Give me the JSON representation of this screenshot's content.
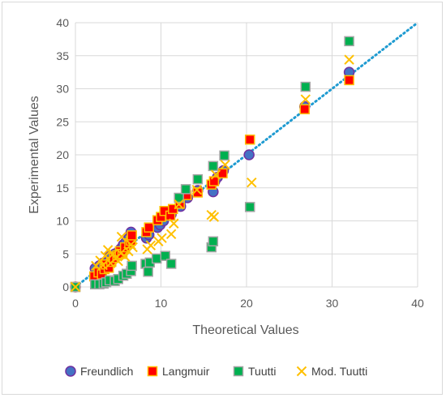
{
  "chart_data": {
    "type": "scatter",
    "xlabel": "Theoretical Values",
    "ylabel": "Experimental Values",
    "xlim": [
      0,
      40
    ],
    "ylim": [
      0,
      40
    ],
    "xticks": [
      0,
      10,
      20,
      30,
      40
    ],
    "yticks": [
      0,
      5,
      10,
      15,
      20,
      25,
      30,
      35,
      40
    ],
    "grid": true,
    "legend_position": "bottom",
    "reference_line": {
      "from": [
        0,
        0
      ],
      "to": [
        40,
        40
      ],
      "style": "dotted",
      "color": "#1f9bd1"
    },
    "series": [
      {
        "name": "Freundlich",
        "marker": "circle",
        "color": "#4472c4",
        "edge": "#7030a0",
        "points": [
          [
            0,
            0
          ],
          [
            2.3,
            2.8
          ],
          [
            2.8,
            3.2
          ],
          [
            3.2,
            3.6
          ],
          [
            3.5,
            3.4
          ],
          [
            3.8,
            4.0
          ],
          [
            4.0,
            4.6
          ],
          [
            4.3,
            4.1
          ],
          [
            4.6,
            5.0
          ],
          [
            5.0,
            5.3
          ],
          [
            5.3,
            5.8
          ],
          [
            5.6,
            6.4
          ],
          [
            5.9,
            6.8
          ],
          [
            6.2,
            7.3
          ],
          [
            6.5,
            8.3
          ],
          [
            8.3,
            7.4
          ],
          [
            8.6,
            7.9
          ],
          [
            9.6,
            9.0
          ],
          [
            9.9,
            9.4
          ],
          [
            10.3,
            10.0
          ],
          [
            11.2,
            11.0
          ],
          [
            12.3,
            12.2
          ],
          [
            13.1,
            13.5
          ],
          [
            14.3,
            14.6
          ],
          [
            16.1,
            14.4
          ],
          [
            16.3,
            16.0
          ],
          [
            16.6,
            16.6
          ],
          [
            17.3,
            17.6
          ],
          [
            20.3,
            20.0
          ],
          [
            26.8,
            27.3
          ],
          [
            32.0,
            32.5
          ]
        ]
      },
      {
        "name": "Langmuir",
        "marker": "square",
        "color": "#ff0000",
        "edge": "#ffc000",
        "points": [
          [
            0,
            0
          ],
          [
            2.2,
            1.6
          ],
          [
            2.7,
            2.2
          ],
          [
            3.1,
            1.9
          ],
          [
            3.4,
            2.7
          ],
          [
            3.6,
            3.4
          ],
          [
            3.9,
            2.9
          ],
          [
            4.2,
            3.8
          ],
          [
            4.5,
            4.4
          ],
          [
            4.9,
            4.8
          ],
          [
            5.2,
            5.4
          ],
          [
            5.5,
            5.0
          ],
          [
            5.8,
            6.0
          ],
          [
            6.3,
            6.6
          ],
          [
            6.5,
            7.0
          ],
          [
            6.6,
            7.8
          ],
          [
            8.3,
            8.3
          ],
          [
            8.6,
            9.0
          ],
          [
            9.6,
            10.1
          ],
          [
            10.0,
            10.6
          ],
          [
            10.4,
            11.5
          ],
          [
            11.1,
            10.8
          ],
          [
            11.4,
            11.8
          ],
          [
            12.2,
            12.6
          ],
          [
            13.0,
            13.9
          ],
          [
            14.3,
            14.3
          ],
          [
            15.9,
            15.5
          ],
          [
            16.2,
            16.0
          ],
          [
            17.2,
            17.2
          ],
          [
            20.4,
            22.3
          ],
          [
            26.8,
            26.9
          ],
          [
            32.0,
            31.3
          ]
        ]
      },
      {
        "name": "Tuutti",
        "marker": "square",
        "color": "#00b050",
        "edge": "#a5a5a5",
        "points": [
          [
            0,
            0
          ],
          [
            2.3,
            0.4
          ],
          [
            2.8,
            0.4
          ],
          [
            3.3,
            0.5
          ],
          [
            3.6,
            0.7
          ],
          [
            4.0,
            1.0
          ],
          [
            4.6,
            0.9
          ],
          [
            5.0,
            1.2
          ],
          [
            5.6,
            1.7
          ],
          [
            6.0,
            2.0
          ],
          [
            6.5,
            2.4
          ],
          [
            6.6,
            3.2
          ],
          [
            8.2,
            3.5
          ],
          [
            8.5,
            2.3
          ],
          [
            8.7,
            3.7
          ],
          [
            9.5,
            4.3
          ],
          [
            10.5,
            4.7
          ],
          [
            11.2,
            3.5
          ],
          [
            12.1,
            13.5
          ],
          [
            12.9,
            14.8
          ],
          [
            14.3,
            16.3
          ],
          [
            15.9,
            6.0
          ],
          [
            16.1,
            6.9
          ],
          [
            16.1,
            18.3
          ],
          [
            17.4,
            19.9
          ],
          [
            20.4,
            12.1
          ],
          [
            26.9,
            30.3
          ],
          [
            32.0,
            37.2
          ]
        ]
      },
      {
        "name": "Mod. Tuutti",
        "marker": "x",
        "color": "#ffc000",
        "points": [
          [
            0,
            0
          ],
          [
            2.4,
            3.2
          ],
          [
            2.9,
            4.0
          ],
          [
            3.2,
            3.3
          ],
          [
            3.5,
            4.7
          ],
          [
            3.8,
            5.6
          ],
          [
            4.1,
            3.6
          ],
          [
            4.4,
            5.0
          ],
          [
            4.7,
            4.3
          ],
          [
            5.0,
            3.9
          ],
          [
            5.3,
            5.1
          ],
          [
            5.4,
            7.6
          ],
          [
            5.8,
            4.6
          ],
          [
            6.2,
            5.4
          ],
          [
            6.5,
            6.4
          ],
          [
            6.7,
            6.0
          ],
          [
            8.4,
            5.7
          ],
          [
            8.8,
            6.3
          ],
          [
            9.7,
            6.9
          ],
          [
            10.1,
            7.4
          ],
          [
            11.2,
            8.0
          ],
          [
            11.5,
            9.6
          ],
          [
            12.1,
            12.5
          ],
          [
            14.2,
            14.7
          ],
          [
            15.9,
            10.9
          ],
          [
            16.2,
            10.6
          ],
          [
            16.4,
            17.0
          ],
          [
            17.5,
            18.5
          ],
          [
            20.6,
            15.8
          ],
          [
            26.9,
            28.4
          ],
          [
            32.0,
            34.4
          ]
        ]
      }
    ]
  }
}
